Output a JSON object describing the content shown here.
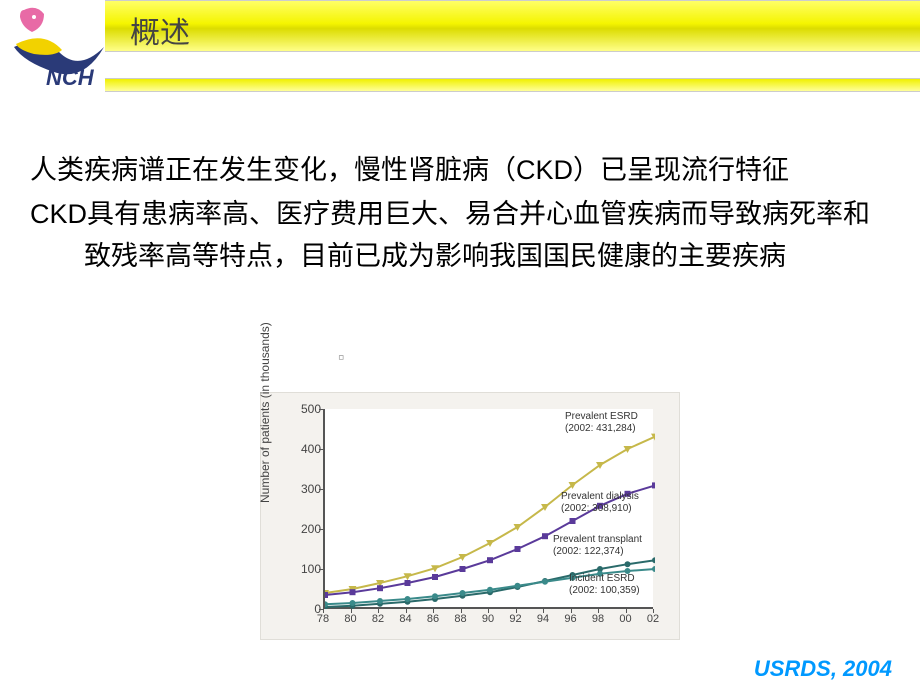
{
  "header": {
    "title": "概述",
    "logo_text": "NCH",
    "logo_colors": {
      "pink": "#e86aa6",
      "navy": "#2a3a78",
      "yellow": "#f2d200"
    }
  },
  "paragraphs": [
    "人类疾病谱正在发生变化，慢性肾脏病（CKD）已呈现流行特征",
    "CKD具有患病率高、医疗费用巨大、易合并心血管疾病而导致病死率和致残率高等特点，目前已成为影响我国国民健康的主要疾病"
  ],
  "chart": {
    "type": "line",
    "ylabel": "Number of patients (in thousands)",
    "background_color": "#f4f2ee",
    "plot_bg": "#ffffff",
    "axis_color": "#555555",
    "ylim": [
      0,
      500
    ],
    "yticks": [
      0,
      100,
      200,
      300,
      400,
      500
    ],
    "x_categories": [
      "78",
      "80",
      "82",
      "84",
      "86",
      "88",
      "90",
      "92",
      "94",
      "96",
      "98",
      "00",
      "02"
    ],
    "series": [
      {
        "name": "Prevalent ESRD",
        "label_lines": [
          "Prevalent ESRD",
          "(2002: 431,284)"
        ],
        "color": "#c6b84a",
        "marker": "▼",
        "values": [
          40,
          50,
          65,
          82,
          102,
          130,
          165,
          205,
          255,
          310,
          360,
          400,
          431
        ]
      },
      {
        "name": "Prevalent dialysis",
        "label_lines": [
          "Prevalent dialysis",
          "(2002: 308,910)"
        ],
        "color": "#5a3a9a",
        "marker": "■",
        "values": [
          35,
          42,
          52,
          65,
          80,
          100,
          122,
          150,
          182,
          220,
          258,
          288,
          309
        ]
      },
      {
        "name": "Prevalent transplant",
        "label_lines": [
          "Prevalent transplant",
          "(2002: 122,374)"
        ],
        "color": "#2a6a6a",
        "marker": "●",
        "values": [
          5,
          8,
          13,
          18,
          25,
          33,
          42,
          55,
          70,
          85,
          100,
          112,
          122
        ]
      },
      {
        "name": "Incident ESRD",
        "label_lines": [
          "Incident ESRD",
          "(2002: 100,359)"
        ],
        "color": "#3a8a8a",
        "marker": "●",
        "values": [
          12,
          15,
          20,
          25,
          32,
          40,
          48,
          58,
          68,
          78,
          88,
          95,
          100
        ]
      }
    ],
    "label_fontsize": 10,
    "tick_fontsize": 12
  },
  "citation": "USRDS, 2004"
}
